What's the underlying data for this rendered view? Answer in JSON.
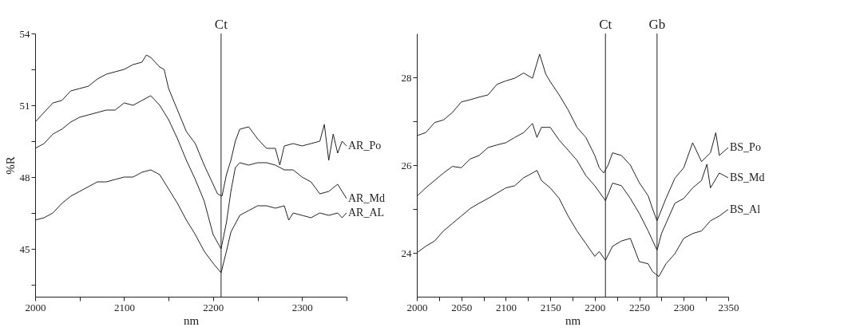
{
  "chart_data": [
    {
      "type": "line",
      "xlabel": "nm",
      "ylabel": "%R",
      "xlim": [
        2000,
        2350
      ],
      "ylim": [
        43,
        54
      ],
      "xticks": [
        2000,
        {
          "value": 2050,
          "label": null
        },
        2100,
        {
          "value": 2150,
          "label": null
        },
        2200,
        {
          "value": 2250,
          "label": null
        },
        2300,
        {
          "value": 2350,
          "label": null
        }
      ],
      "yticks": [
        {
          "value": 43.5,
          "label": null
        },
        45,
        {
          "value": 46.5,
          "label": null
        },
        48,
        {
          "value": 49.5,
          "label": null
        },
        51,
        {
          "value": 52.5,
          "label": null
        },
        54
      ],
      "grid": false,
      "legend": false,
      "ref_lines": [
        {
          "axis": "x",
          "value": 2209,
          "label": "Ct"
        }
      ],
      "series": [
        {
          "name": "AR_Po",
          "color": "#222222",
          "x": [
            2000,
            2010,
            2020,
            2030,
            2040,
            2050,
            2060,
            2070,
            2080,
            2090,
            2100,
            2110,
            2120,
            2125,
            2130,
            2140,
            2145,
            2150,
            2160,
            2170,
            2180,
            2190,
            2200,
            2205,
            2210,
            2215,
            2220,
            2225,
            2230,
            2240,
            2250,
            2260,
            2270,
            2275,
            2280,
            2290,
            2300,
            2310,
            2320,
            2325,
            2330,
            2335,
            2340,
            2345,
            2350
          ],
          "values": [
            50.3,
            50.7,
            51.1,
            51.2,
            51.6,
            51.7,
            51.8,
            52.1,
            52.3,
            52.4,
            52.5,
            52.7,
            52.8,
            53.1,
            53.0,
            52.6,
            52.5,
            51.7,
            50.8,
            49.9,
            49.4,
            48.5,
            47.7,
            47.3,
            47.2,
            48.1,
            48.7,
            49.5,
            50.0,
            50.1,
            49.6,
            49.2,
            49.2,
            48.5,
            49.3,
            49.4,
            49.3,
            49.4,
            49.5,
            50.2,
            48.7,
            49.8,
            49.0,
            49.5,
            49.3
          ]
        },
        {
          "name": "AR_Md",
          "color": "#222222",
          "x": [
            2000,
            2010,
            2020,
            2030,
            2040,
            2050,
            2060,
            2070,
            2080,
            2090,
            2100,
            2110,
            2120,
            2130,
            2140,
            2150,
            2160,
            2170,
            2180,
            2190,
            2200,
            2209,
            2215,
            2220,
            2225,
            2230,
            2240,
            2250,
            2260,
            2270,
            2280,
            2290,
            2300,
            2310,
            2320,
            2330,
            2340,
            2345,
            2350
          ],
          "values": [
            49.2,
            49.4,
            49.8,
            50.0,
            50.3,
            50.5,
            50.6,
            50.7,
            50.8,
            50.8,
            51.1,
            51.0,
            51.2,
            51.4,
            51.0,
            50.4,
            49.6,
            48.7,
            47.9,
            47.0,
            45.6,
            45.0,
            46.1,
            47.4,
            48.4,
            48.6,
            48.5,
            48.6,
            48.6,
            48.5,
            48.3,
            48.3,
            48.0,
            47.8,
            47.3,
            47.4,
            47.7,
            47.4,
            47.1
          ]
        },
        {
          "name": "AR_AL",
          "color": "#222222",
          "x": [
            2000,
            2010,
            2020,
            2030,
            2040,
            2050,
            2060,
            2070,
            2080,
            2090,
            2100,
            2110,
            2120,
            2130,
            2140,
            2150,
            2160,
            2170,
            2180,
            2190,
            2200,
            2209,
            2215,
            2220,
            2230,
            2240,
            2250,
            2260,
            2270,
            2280,
            2285,
            2290,
            2300,
            2310,
            2320,
            2330,
            2340,
            2345,
            2350
          ],
          "values": [
            46.2,
            46.3,
            46.5,
            46.9,
            47.2,
            47.4,
            47.6,
            47.8,
            47.8,
            47.9,
            48.0,
            48.0,
            48.2,
            48.3,
            48.1,
            47.5,
            46.9,
            46.2,
            45.6,
            44.9,
            44.4,
            44.0,
            44.9,
            45.7,
            46.4,
            46.6,
            46.8,
            46.8,
            46.7,
            46.8,
            46.2,
            46.5,
            46.4,
            46.3,
            46.5,
            46.4,
            46.5,
            46.3,
            46.5
          ]
        }
      ]
    },
    {
      "type": "line",
      "xlabel": "nm",
      "xlim": [
        2000,
        2350
      ],
      "ylim": [
        23,
        29
      ],
      "xticks": [
        2000,
        {
          "value": 2025,
          "label": null
        },
        2050,
        {
          "value": 2075,
          "label": null
        },
        2100,
        {
          "value": 2125,
          "label": null
        },
        2150,
        {
          "value": 2175,
          "label": null
        },
        2200,
        {
          "value": 2225,
          "label": null
        },
        2250,
        {
          "value": 2275,
          "label": null
        },
        2300,
        {
          "value": 2325,
          "label": null
        },
        2350
      ],
      "yticks": [
        24,
        {
          "value": 25,
          "label": null
        },
        26,
        {
          "value": 27,
          "label": null
        },
        28
      ],
      "grid": false,
      "legend": false,
      "ref_lines": [
        {
          "axis": "x",
          "value": 2212,
          "label": "Ct"
        },
        {
          "axis": "x",
          "value": 2270,
          "label": "Gb"
        }
      ],
      "series": [
        {
          "name": "BS_Po",
          "color": "#222222",
          "x": [
            2000,
            2010,
            2020,
            2030,
            2040,
            2050,
            2060,
            2070,
            2080,
            2090,
            2100,
            2110,
            2120,
            2130,
            2138,
            2145,
            2150,
            2160,
            2170,
            2180,
            2190,
            2200,
            2205,
            2210,
            2215,
            2220,
            2230,
            2240,
            2250,
            2260,
            2265,
            2270,
            2280,
            2290,
            2300,
            2310,
            2320,
            2330,
            2336,
            2340,
            2350
          ],
          "values": [
            26.67,
            26.74,
            26.97,
            27.03,
            27.2,
            27.44,
            27.49,
            27.55,
            27.6,
            27.84,
            27.92,
            27.98,
            28.1,
            27.98,
            28.53,
            28.07,
            27.9,
            27.6,
            27.26,
            26.86,
            26.63,
            26.22,
            25.94,
            25.82,
            26.0,
            26.28,
            26.22,
            26.0,
            25.6,
            25.3,
            25.0,
            24.73,
            25.24,
            25.7,
            25.94,
            26.51,
            26.08,
            26.28,
            26.74,
            26.22,
            26.4
          ]
        },
        {
          "name": "BS_Md",
          "color": "#222222",
          "x": [
            2000,
            2010,
            2020,
            2030,
            2040,
            2050,
            2060,
            2070,
            2080,
            2090,
            2100,
            2110,
            2120,
            2130,
            2135,
            2140,
            2150,
            2160,
            2170,
            2180,
            2190,
            2200,
            2212,
            2220,
            2230,
            2240,
            2250,
            2260,
            2270,
            2275,
            2280,
            2290,
            2300,
            2310,
            2320,
            2326,
            2330,
            2340,
            2350
          ],
          "values": [
            25.29,
            25.48,
            25.65,
            25.82,
            25.97,
            25.94,
            26.14,
            26.22,
            26.4,
            26.46,
            26.51,
            26.63,
            26.74,
            26.95,
            26.63,
            26.86,
            26.86,
            26.57,
            26.34,
            26.11,
            25.76,
            25.53,
            25.19,
            25.59,
            25.53,
            25.24,
            24.9,
            24.5,
            24.06,
            24.44,
            24.67,
            25.13,
            25.24,
            25.48,
            25.65,
            26.02,
            25.48,
            25.82,
            25.71
          ]
        },
        {
          "name": "BS_Al",
          "color": "#222222",
          "x": [
            2000,
            2010,
            2020,
            2030,
            2040,
            2050,
            2060,
            2070,
            2080,
            2090,
            2100,
            2110,
            2120,
            2130,
            2135,
            2140,
            2150,
            2160,
            2170,
            2180,
            2190,
            2200,
            2205,
            2212,
            2220,
            2230,
            2240,
            2250,
            2260,
            2265,
            2272,
            2280,
            2290,
            2300,
            2310,
            2320,
            2330,
            2340,
            2350
          ],
          "values": [
            24.0,
            24.15,
            24.27,
            24.5,
            24.67,
            24.84,
            25.01,
            25.13,
            25.24,
            25.36,
            25.48,
            25.53,
            25.71,
            25.82,
            25.88,
            25.65,
            25.48,
            25.24,
            24.84,
            24.5,
            24.21,
            23.92,
            24.03,
            23.83,
            24.15,
            24.27,
            24.33,
            23.8,
            23.75,
            23.57,
            23.46,
            23.75,
            23.98,
            24.33,
            24.44,
            24.5,
            24.73,
            24.84,
            24.99
          ]
        }
      ]
    }
  ]
}
